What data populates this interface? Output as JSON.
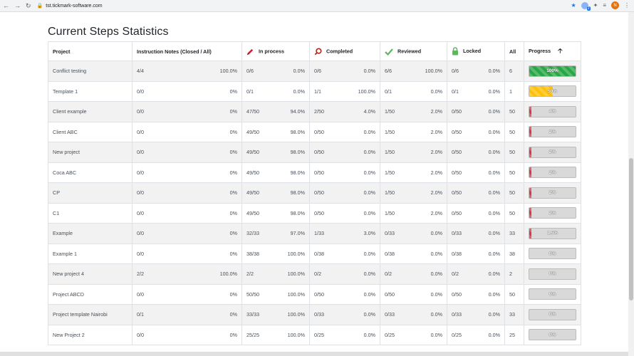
{
  "browser": {
    "url": "tst.tickmark-software.com",
    "ext_badge": "2",
    "avatar_letter": "N"
  },
  "page": {
    "title": "Current Steps Statistics"
  },
  "table": {
    "headers": {
      "project": "Project",
      "notes": "Instruction Notes (Closed / All)",
      "in_process": "In process",
      "completed": "Completed",
      "reviewed": "Reviewed",
      "locked": "Locked",
      "all": "All",
      "progress": "Progress"
    },
    "colors": {
      "success": "#28a745",
      "warning": "#ffc107",
      "danger": "#dc3545",
      "pen": "#c82333",
      "search": "#b02a1b",
      "check": "#5cb85c",
      "lock": "#5cb85c"
    },
    "rows": [
      {
        "project": "Conflict testing",
        "notes": "4/4",
        "notes_pct": "100.0%",
        "inproc": "0/6",
        "inproc_pct": "0.0%",
        "comp": "0/6",
        "comp_pct": "0.0%",
        "rev": "6/6",
        "rev_pct": "100.0%",
        "lock": "0/6",
        "lock_pct": "0.0%",
        "all": "6",
        "progress": 100,
        "progress_label": "100%",
        "color": "success"
      },
      {
        "project": "Template 1",
        "notes": "0/0",
        "notes_pct": "0%",
        "inproc": "0/1",
        "inproc_pct": "0.0%",
        "comp": "1/1",
        "comp_pct": "100.0%",
        "rev": "0/1",
        "rev_pct": "0.0%",
        "lock": "0/1",
        "lock_pct": "0.0%",
        "all": "1",
        "progress": 50,
        "progress_label": "50%",
        "color": "warning"
      },
      {
        "project": "Client example",
        "notes": "0/0",
        "notes_pct": "0%",
        "inproc": "47/50",
        "inproc_pct": "94.0%",
        "comp": "2/50",
        "comp_pct": "4.0%",
        "rev": "1/50",
        "rev_pct": "2.0%",
        "lock": "0/50",
        "lock_pct": "0.0%",
        "all": "50",
        "progress": 4,
        "progress_label": "4%",
        "color": "danger"
      },
      {
        "project": "Client ABC",
        "notes": "0/0",
        "notes_pct": "0%",
        "inproc": "49/50",
        "inproc_pct": "98.0%",
        "comp": "0/50",
        "comp_pct": "0.0%",
        "rev": "1/50",
        "rev_pct": "2.0%",
        "lock": "0/50",
        "lock_pct": "0.0%",
        "all": "50",
        "progress": 2,
        "progress_label": "2%",
        "color": "danger"
      },
      {
        "project": "New project",
        "notes": "0/0",
        "notes_pct": "0%",
        "inproc": "49/50",
        "inproc_pct": "98.0%",
        "comp": "0/50",
        "comp_pct": "0.0%",
        "rev": "1/50",
        "rev_pct": "2.0%",
        "lock": "0/50",
        "lock_pct": "0.0%",
        "all": "50",
        "progress": 2,
        "progress_label": "2%",
        "color": "danger"
      },
      {
        "project": "Coca ABC",
        "notes": "0/0",
        "notes_pct": "0%",
        "inproc": "49/50",
        "inproc_pct": "98.0%",
        "comp": "0/50",
        "comp_pct": "0.0%",
        "rev": "1/50",
        "rev_pct": "2.0%",
        "lock": "0/50",
        "lock_pct": "0.0%",
        "all": "50",
        "progress": 2,
        "progress_label": "2%",
        "color": "danger"
      },
      {
        "project": "CP",
        "notes": "0/0",
        "notes_pct": "0%",
        "inproc": "49/50",
        "inproc_pct": "98.0%",
        "comp": "0/50",
        "comp_pct": "0.0%",
        "rev": "1/50",
        "rev_pct": "2.0%",
        "lock": "0/50",
        "lock_pct": "0.0%",
        "all": "50",
        "progress": 2,
        "progress_label": "2%",
        "color": "danger"
      },
      {
        "project": "C1",
        "notes": "0/0",
        "notes_pct": "0%",
        "inproc": "49/50",
        "inproc_pct": "98.0%",
        "comp": "0/50",
        "comp_pct": "0.0%",
        "rev": "1/50",
        "rev_pct": "2.0%",
        "lock": "0/50",
        "lock_pct": "0.0%",
        "all": "50",
        "progress": 2,
        "progress_label": "2%",
        "color": "danger"
      },
      {
        "project": "Example",
        "notes": "0/0",
        "notes_pct": "0%",
        "inproc": "32/33",
        "inproc_pct": "97.0%",
        "comp": "1/33",
        "comp_pct": "3.0%",
        "rev": "0/33",
        "rev_pct": "0.0%",
        "lock": "0/33",
        "lock_pct": "0.0%",
        "all": "33",
        "progress": 1.5,
        "progress_label": "1.5%",
        "color": "danger"
      },
      {
        "project": "Example 1",
        "notes": "0/0",
        "notes_pct": "0%",
        "inproc": "38/38",
        "inproc_pct": "100.0%",
        "comp": "0/38",
        "comp_pct": "0.0%",
        "rev": "0/38",
        "rev_pct": "0.0%",
        "lock": "0/38",
        "lock_pct": "0.0%",
        "all": "38",
        "progress": 0,
        "progress_label": "0%",
        "color": "danger"
      },
      {
        "project": "New project 4",
        "notes": "2/2",
        "notes_pct": "100.0%",
        "inproc": "2/2",
        "inproc_pct": "100.0%",
        "comp": "0/2",
        "comp_pct": "0.0%",
        "rev": "0/2",
        "rev_pct": "0.0%",
        "lock": "0/2",
        "lock_pct": "0.0%",
        "all": "2",
        "progress": 0,
        "progress_label": "0%",
        "color": "danger"
      },
      {
        "project": "Project ABCD",
        "notes": "0/0",
        "notes_pct": "0%",
        "inproc": "50/50",
        "inproc_pct": "100.0%",
        "comp": "0/50",
        "comp_pct": "0.0%",
        "rev": "0/50",
        "rev_pct": "0.0%",
        "lock": "0/50",
        "lock_pct": "0.0%",
        "all": "50",
        "progress": 0,
        "progress_label": "0%",
        "color": "danger"
      },
      {
        "project": "Project template Nairobi",
        "notes": "0/1",
        "notes_pct": "0%",
        "inproc": "33/33",
        "inproc_pct": "100.0%",
        "comp": "0/33",
        "comp_pct": "0.0%",
        "rev": "0/33",
        "rev_pct": "0.0%",
        "lock": "0/33",
        "lock_pct": "0.0%",
        "all": "33",
        "progress": 0,
        "progress_label": "0%",
        "color": "danger"
      },
      {
        "project": "New Project 2",
        "notes": "0/0",
        "notes_pct": "0%",
        "inproc": "25/25",
        "inproc_pct": "100.0%",
        "comp": "0/25",
        "comp_pct": "0.0%",
        "rev": "0/25",
        "rev_pct": "0.0%",
        "lock": "0/25",
        "lock_pct": "0.0%",
        "all": "25",
        "progress": 0,
        "progress_label": "0%",
        "color": "danger"
      }
    ]
  }
}
